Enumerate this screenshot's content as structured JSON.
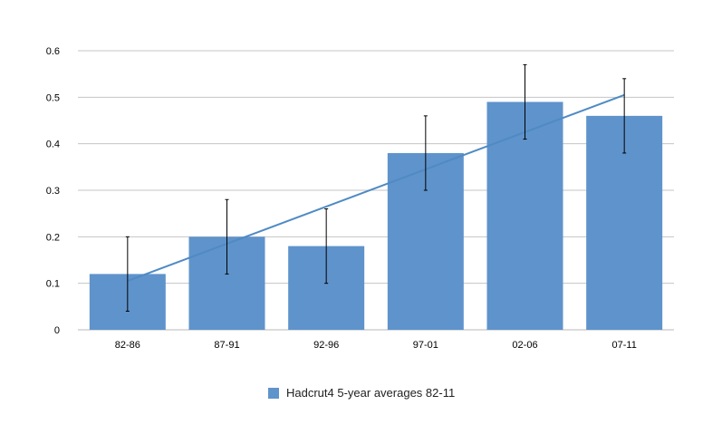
{
  "chart_data": {
    "type": "bar",
    "categories": [
      "82-86",
      "87-91",
      "92-96",
      "97-01",
      "02-06",
      "07-11"
    ],
    "series": [
      {
        "name": "Hadcrut4 5-year averages 82-11",
        "values": [
          0.12,
          0.2,
          0.18,
          0.38,
          0.49,
          0.46
        ],
        "error_low": [
          0.04,
          0.12,
          0.1,
          0.3,
          0.41,
          0.38
        ],
        "error_high": [
          0.2,
          0.28,
          0.26,
          0.46,
          0.57,
          0.54
        ]
      }
    ],
    "trendline": {
      "start": 0.105,
      "end": 0.505
    },
    "ylim": [
      0,
      0.6
    ],
    "yticks": [
      "0",
      "0.1",
      "0.2",
      "0.3",
      "0.4",
      "0.5",
      "0.6"
    ],
    "ytick_values": [
      0,
      0.1,
      0.2,
      0.3,
      0.4,
      0.5,
      0.6
    ],
    "grid": true,
    "legend_position": "bottom",
    "bar_color": "#5f93cb",
    "trend_color": "#4f8ac4"
  }
}
